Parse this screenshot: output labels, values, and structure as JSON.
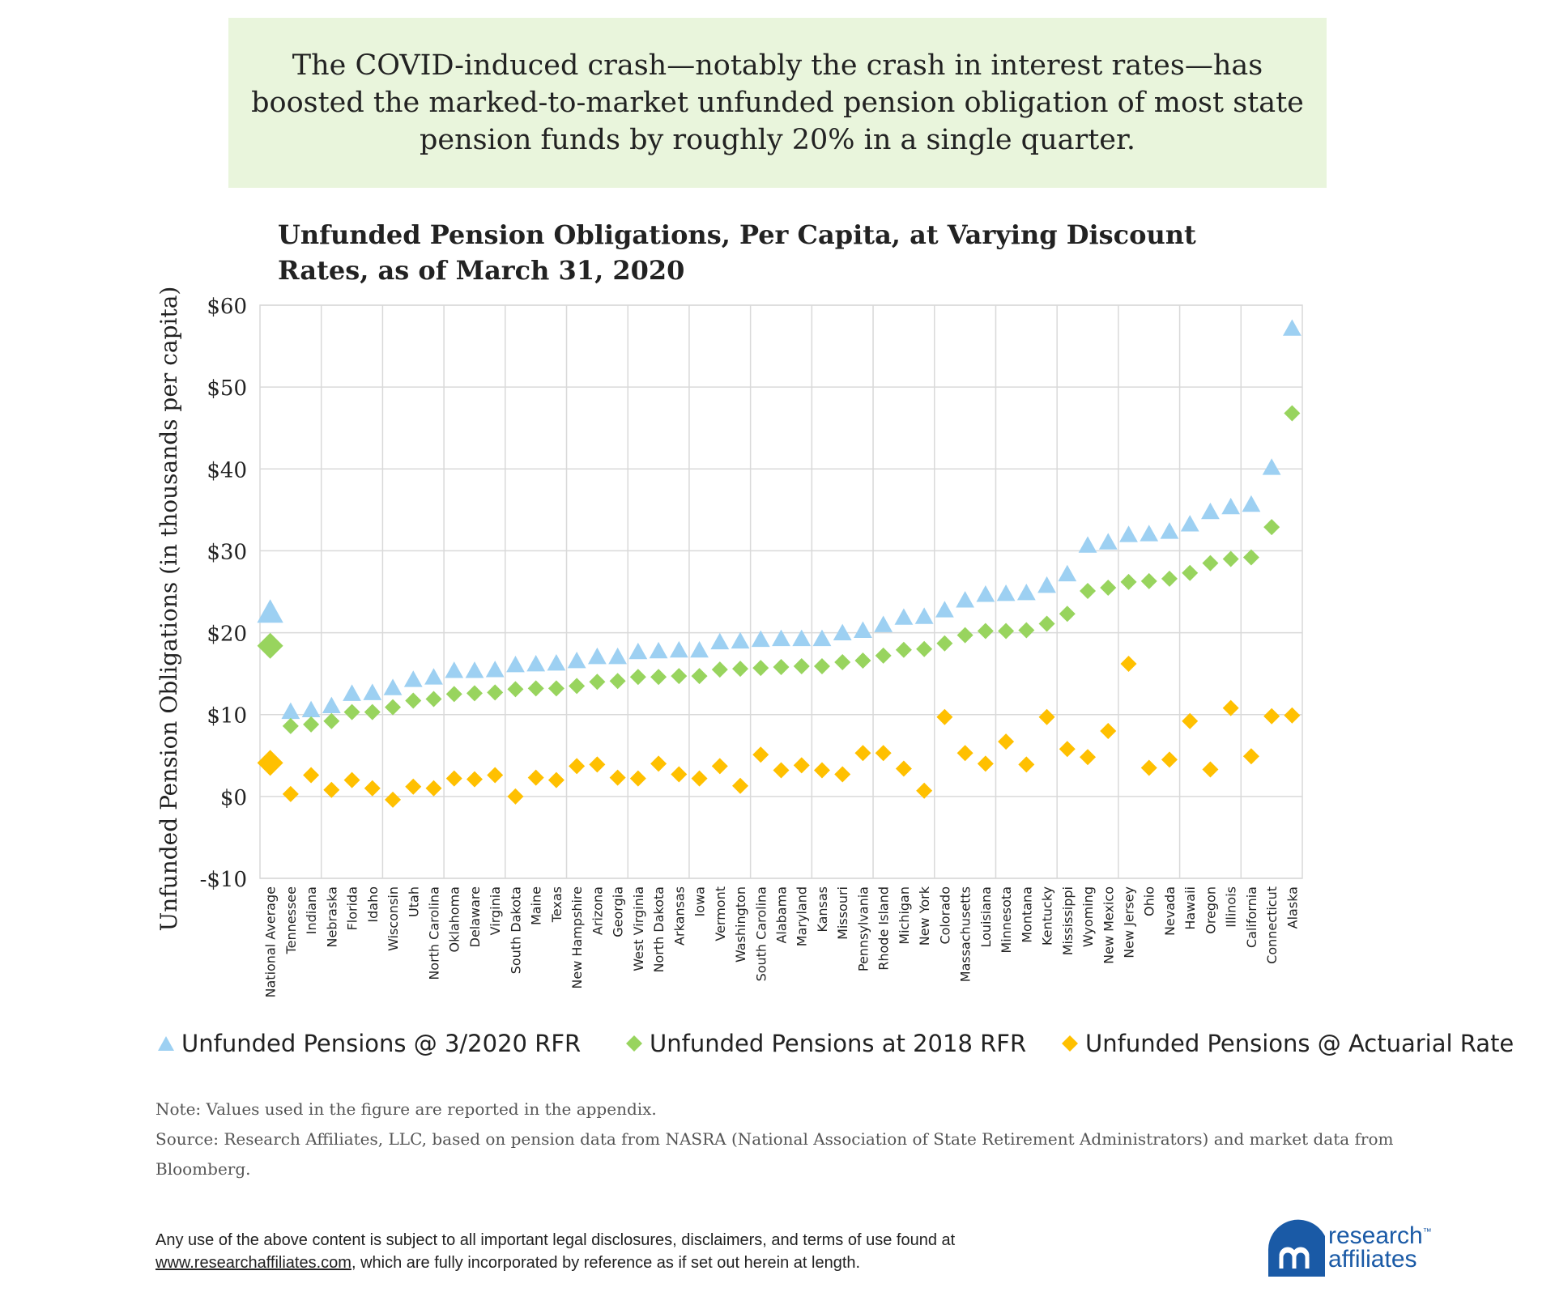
{
  "callout": {
    "text": "The COVID-induced crash—notably the crash in interest rates—has boosted the marked-to-market unfunded pension obligation of most state pension funds by roughly 20% in a single quarter."
  },
  "colors": {
    "callout_bg": "#e9f5dc",
    "rfr_2020": "#9dd0f2",
    "rfr_2018": "#98d45e",
    "actuarial": "#ffc000",
    "grid": "#d9d9d9",
    "logo_blue": "#1a5aa6"
  },
  "chart_data": {
    "type": "scatter",
    "title": "Unfunded Pension Obligations, Per Capita, at Varying Discount Rates, as of March 31, 2020",
    "ylabel": "Unfunded Pension Obligations (in thousands per capita)",
    "xlabel": "",
    "ylim": [
      -10,
      60
    ],
    "yticks": [
      -10,
      0,
      10,
      20,
      30,
      40,
      50,
      60
    ],
    "ytick_labels": [
      "-$10",
      "$0",
      "$10",
      "$20",
      "$30",
      "$40",
      "$50",
      "$60"
    ],
    "grid": true,
    "legend_position": "bottom",
    "categories": [
      "National Average",
      "Tennessee",
      "Indiana",
      "Nebraska",
      "Florida",
      "Idaho",
      "Wisconsin",
      "Utah",
      "North Carolina",
      "Oklahoma",
      "Delaware",
      "Virginia",
      "South Dakota",
      "Maine",
      "Texas",
      "New Hampshire",
      "Arizona",
      "Georgia",
      "West Virginia",
      "North Dakota",
      "Arkansas",
      "Iowa",
      "Vermont",
      "Washington",
      "South Carolina",
      "Alabama",
      "Maryland",
      "Kansas",
      "Missouri",
      "Pennsylvania",
      "Rhode Island",
      "Michigan",
      "New York",
      "Colorado",
      "Massachusetts",
      "Louisiana",
      "Minnesota",
      "Montana",
      "Kentucky",
      "Mississippi",
      "Wyoming",
      "New Mexico",
      "New Jersey",
      "Ohio",
      "Nevada",
      "Hawaii",
      "Oregon",
      "Illinois",
      "California",
      "Connecticut",
      "Alaska"
    ],
    "series": [
      {
        "name": "Unfunded Pensions @ 3/2020 RFR",
        "marker": "triangle",
        "values": [
          22.4,
          10.3,
          10.5,
          11.0,
          12.5,
          12.6,
          13.2,
          14.2,
          14.5,
          15.3,
          15.3,
          15.4,
          16.0,
          16.1,
          16.2,
          16.5,
          17.0,
          17.0,
          17.6,
          17.7,
          17.8,
          17.8,
          18.8,
          18.9,
          19.1,
          19.2,
          19.2,
          19.2,
          19.9,
          20.2,
          20.9,
          21.8,
          21.9,
          22.7,
          23.9,
          24.6,
          24.7,
          24.8,
          25.7,
          27.1,
          30.6,
          31.0,
          31.9,
          32.0,
          32.3,
          33.2,
          34.7,
          35.3,
          35.6,
          40.1,
          57.1
        ]
      },
      {
        "name": "Unfunded Pensions at 2018 RFR",
        "marker": "diamond",
        "values": [
          18.4,
          8.6,
          8.8,
          9.2,
          10.3,
          10.3,
          10.9,
          11.7,
          11.9,
          12.5,
          12.6,
          12.7,
          13.1,
          13.2,
          13.2,
          13.5,
          14.0,
          14.1,
          14.6,
          14.6,
          14.7,
          14.7,
          15.5,
          15.6,
          15.7,
          15.8,
          15.9,
          15.9,
          16.4,
          16.6,
          17.2,
          17.9,
          18.0,
          18.7,
          19.7,
          20.2,
          20.2,
          20.3,
          21.1,
          22.3,
          25.1,
          25.5,
          26.2,
          26.3,
          26.6,
          27.3,
          28.5,
          29.0,
          29.2,
          32.9,
          46.8
        ]
      },
      {
        "name": "Unfunded Pensions @ Actuarial Rate",
        "marker": "diamond",
        "values": [
          4.1,
          0.3,
          2.6,
          0.8,
          2.0,
          1.0,
          -0.4,
          1.2,
          1.0,
          2.2,
          2.1,
          2.6,
          0.0,
          2.3,
          2.0,
          3.7,
          3.9,
          2.3,
          2.2,
          4.0,
          2.7,
          2.2,
          3.7,
          1.3,
          5.1,
          3.2,
          3.8,
          3.2,
          2.7,
          5.3,
          5.3,
          3.4,
          0.7,
          9.7,
          5.3,
          4.0,
          6.7,
          3.9,
          9.7,
          5.8,
          4.8,
          8.0,
          16.2,
          3.5,
          4.5,
          9.2,
          3.3,
          10.8,
          4.9,
          9.8,
          9.9
        ]
      }
    ]
  },
  "legend": [
    {
      "label": "Unfunded Pensions @ 3/2020 RFR",
      "marker": "triangle-icon"
    },
    {
      "label": "Unfunded Pensions at 2018 RFR",
      "marker": "diamond-icon"
    },
    {
      "label": "Unfunded Pensions @ Actuarial Rate",
      "marker": "diamond-icon"
    }
  ],
  "notes": {
    "note": "Note: Values used in the figure are reported in the appendix.",
    "source": "Source: Research Affiliates, LLC, based on pension data from NASRA (National Association of State Retirement Administrators) and market data from Bloomberg."
  },
  "disclaimer": {
    "line1": "Any use of the above content is subject to all important legal disclosures, disclaimers, and terms of use found at",
    "link": "www.researchaffiliates.com",
    "line2_rest": ", which are fully incorporated by reference as if set out herein at length."
  },
  "logo": {
    "line1": "research",
    "line2": "affiliates",
    "tm": "™"
  }
}
